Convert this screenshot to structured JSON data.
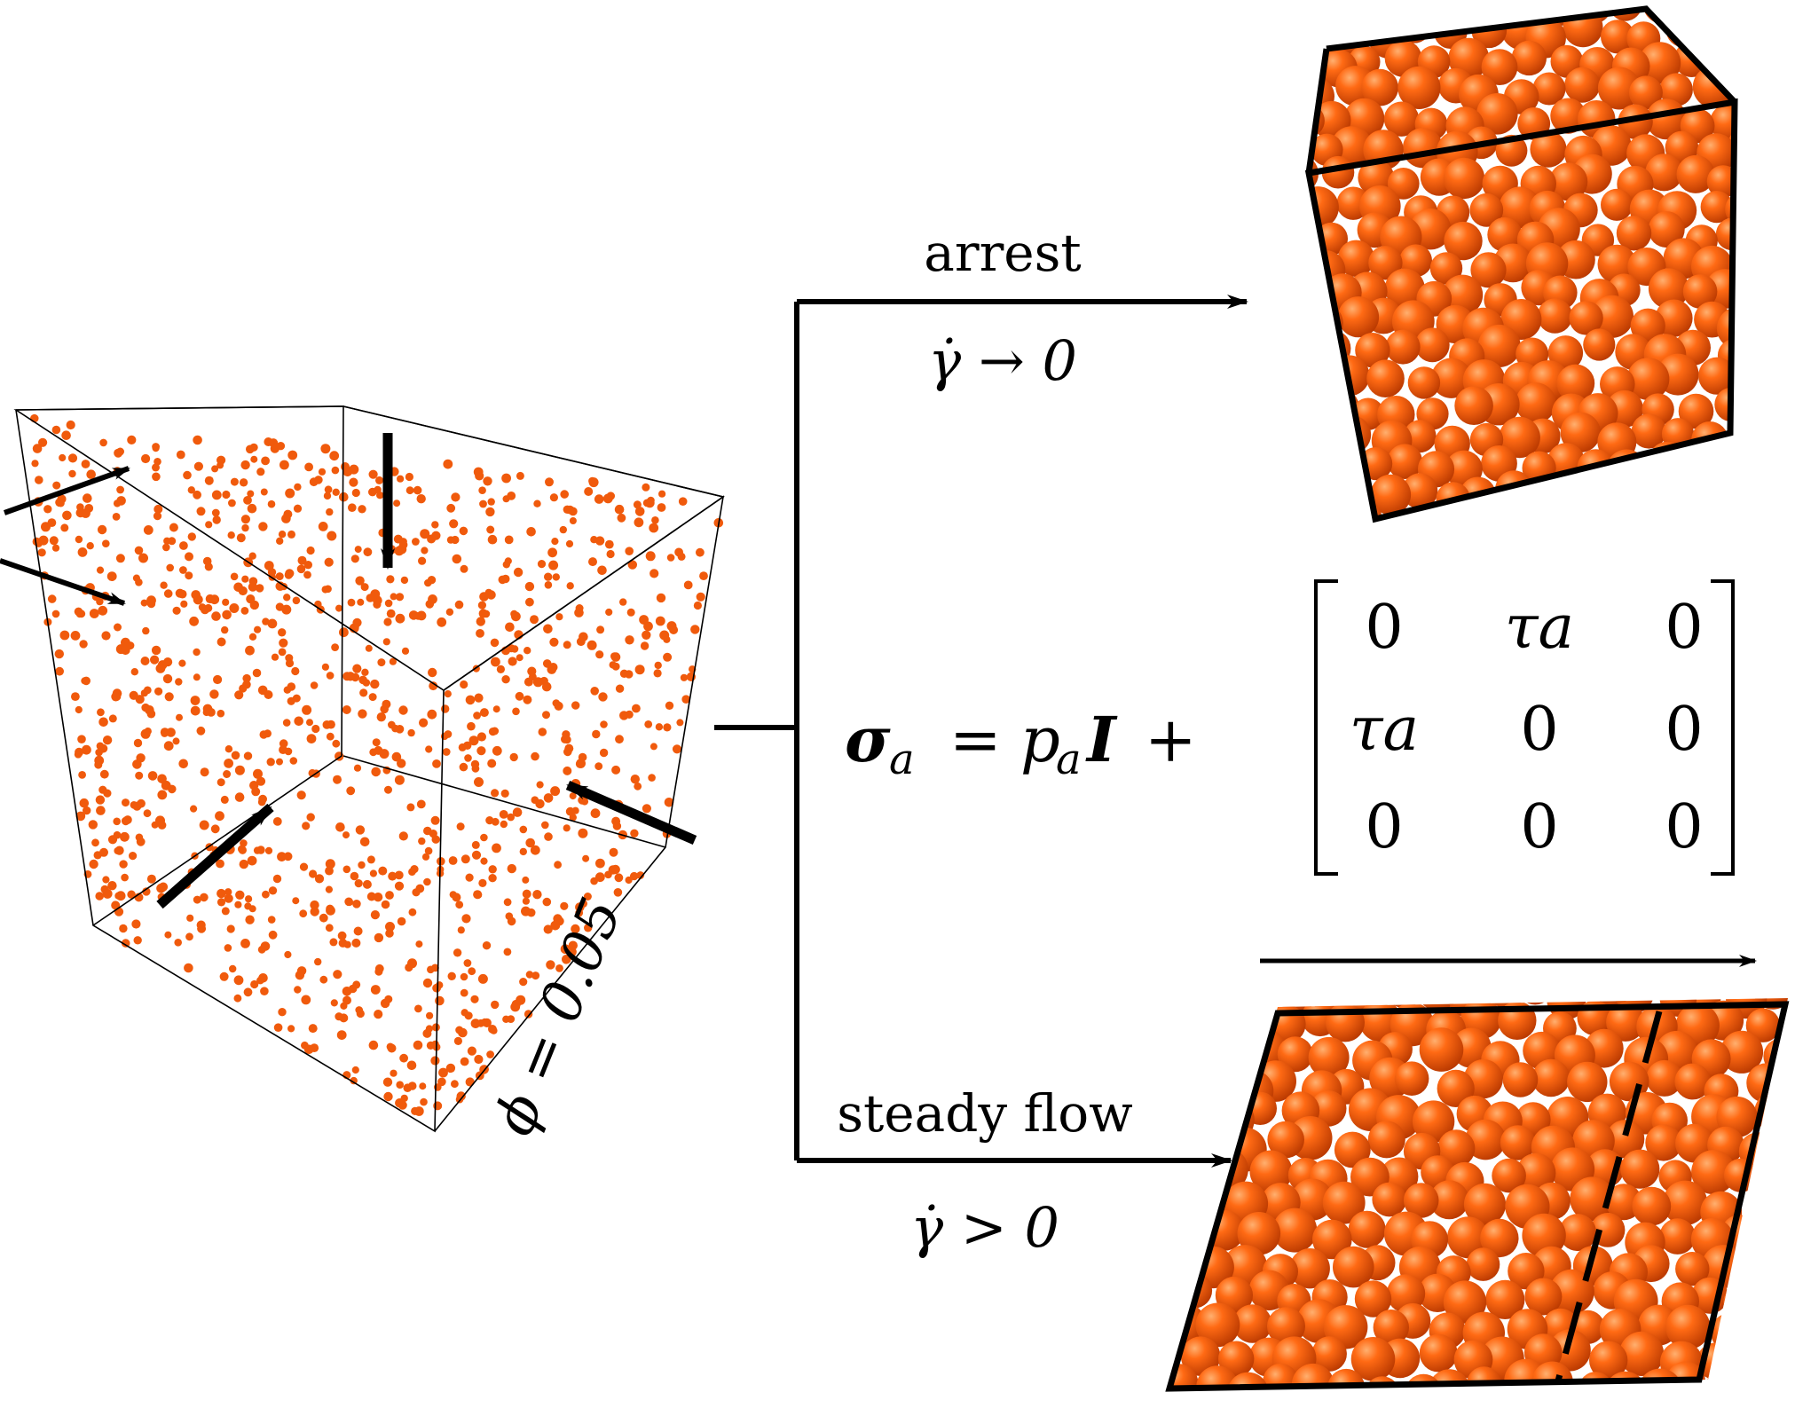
{
  "initial_state": {
    "volume_fraction_label": "ϕ = 0.05"
  },
  "branches": {
    "arrest": {
      "label": "arrest",
      "condition": "γ̇ → 0"
    },
    "steady_flow": {
      "label": "steady flow",
      "condition": "γ̇ > 0"
    }
  },
  "equation": {
    "lhs": "σ",
    "lhs_sub": "a",
    "eq": "=",
    "p": "p",
    "p_sub": "a",
    "identity": "I",
    "plus": "+",
    "matrix": [
      [
        "0",
        "τa",
        "0"
      ],
      [
        "τa",
        "0",
        "0"
      ],
      [
        "0",
        "0",
        "0"
      ]
    ]
  },
  "colors": {
    "particle": "#f05a0c",
    "particle_dark": "#b23400",
    "line": "#000000"
  }
}
